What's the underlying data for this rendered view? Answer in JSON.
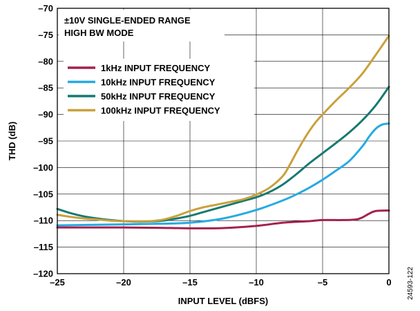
{
  "chart_data": {
    "type": "line",
    "title": "",
    "xlabel": "INPUT LEVEL (dBFS)",
    "ylabel": "THD (dB)",
    "xlim": [
      -25,
      0
    ],
    "ylim": [
      -120,
      -70
    ],
    "xticks": [
      -25,
      -20,
      -15,
      -10,
      -5,
      0
    ],
    "xtick_labels": [
      "–25",
      "–20",
      "–15",
      "–10",
      "–5",
      "0"
    ],
    "yticks": [
      -120,
      -115,
      -110,
      -105,
      -100,
      -95,
      -90,
      -85,
      -80,
      -75,
      -70
    ],
    "ytick_labels": [
      "–120",
      "–115",
      "–110",
      "–105",
      "–100",
      "–95",
      "–90",
      "–85",
      "–80",
      "–75",
      "–70"
    ],
    "grid": true,
    "legend_position": "upper-left",
    "annotation_lines": [
      "±10V SINGLE-ENDED RANGE",
      "HIGH BW MODE"
    ],
    "figure_id": "24593-122",
    "series": [
      {
        "name": "1kHz INPUT FREQUENCY",
        "color": "#a3214f",
        "points": [
          [
            -25,
            -111.3
          ],
          [
            -22.5,
            -111.3
          ],
          [
            -20,
            -111.3
          ],
          [
            -17.5,
            -111.35
          ],
          [
            -15,
            -111.45
          ],
          [
            -12.5,
            -111.4
          ],
          [
            -10,
            -111.0
          ],
          [
            -8,
            -110.4
          ],
          [
            -6,
            -110.1
          ],
          [
            -5,
            -109.9
          ],
          [
            -3.5,
            -109.9
          ],
          [
            -2.5,
            -109.8
          ],
          [
            -2,
            -109.4
          ],
          [
            -1.5,
            -108.7
          ],
          [
            -1,
            -108.2
          ],
          [
            0,
            -108.1
          ]
        ]
      },
      {
        "name": "10kHz INPUT FREQUENCY",
        "color": "#27aae1",
        "points": [
          [
            -25,
            -110.9
          ],
          [
            -22.5,
            -110.8
          ],
          [
            -20,
            -110.7
          ],
          [
            -17.5,
            -110.6
          ],
          [
            -15,
            -110.4
          ],
          [
            -12.5,
            -109.6
          ],
          [
            -10,
            -108.0
          ],
          [
            -8,
            -106.2
          ],
          [
            -7,
            -105.1
          ],
          [
            -6,
            -103.8
          ],
          [
            -5,
            -102.3
          ],
          [
            -4,
            -100.6
          ],
          [
            -3,
            -98.8
          ],
          [
            -2,
            -96.0
          ],
          [
            -1.5,
            -94.2
          ],
          [
            -1,
            -92.7
          ],
          [
            -0.5,
            -91.9
          ],
          [
            0,
            -91.7
          ]
        ]
      },
      {
        "name": "50kHz INPUT FREQUENCY",
        "color": "#177a70",
        "points": [
          [
            -25,
            -107.8
          ],
          [
            -24,
            -108.6
          ],
          [
            -23,
            -109.2
          ],
          [
            -22,
            -109.6
          ],
          [
            -21,
            -109.9
          ],
          [
            -20,
            -110.1
          ],
          [
            -19,
            -110.2
          ],
          [
            -18,
            -110.15
          ],
          [
            -17,
            -110.0
          ],
          [
            -16,
            -109.6
          ],
          [
            -15,
            -109.1
          ],
          [
            -14,
            -108.4
          ],
          [
            -13,
            -107.7
          ],
          [
            -12,
            -107.0
          ],
          [
            -11,
            -106.3
          ],
          [
            -10,
            -105.6
          ],
          [
            -9,
            -104.6
          ],
          [
            -8,
            -103.2
          ],
          [
            -7,
            -101.3
          ],
          [
            -6,
            -99.2
          ],
          [
            -5,
            -97.3
          ],
          [
            -4,
            -95.4
          ],
          [
            -3,
            -93.4
          ],
          [
            -2,
            -91.1
          ],
          [
            -1,
            -88.3
          ],
          [
            0,
            -84.8
          ]
        ]
      },
      {
        "name": "100kHz INPUT FREQUENCY",
        "color": "#c9a13c",
        "points": [
          [
            -25,
            -108.9
          ],
          [
            -24,
            -109.3
          ],
          [
            -23,
            -109.6
          ],
          [
            -22,
            -109.8
          ],
          [
            -21,
            -110.0
          ],
          [
            -20,
            -110.1
          ],
          [
            -19,
            -110.15
          ],
          [
            -18,
            -110.1
          ],
          [
            -17,
            -109.8
          ],
          [
            -16,
            -109.1
          ],
          [
            -15,
            -108.2
          ],
          [
            -14,
            -107.5
          ],
          [
            -13,
            -107.0
          ],
          [
            -12,
            -106.5
          ],
          [
            -11,
            -106.0
          ],
          [
            -10,
            -105.1
          ],
          [
            -9,
            -103.8
          ],
          [
            -8,
            -101.6
          ],
          [
            -7.5,
            -99.6
          ],
          [
            -7,
            -97.3
          ],
          [
            -6.5,
            -95.1
          ],
          [
            -6,
            -93.1
          ],
          [
            -5.5,
            -91.4
          ],
          [
            -5,
            -90.0
          ],
          [
            -4,
            -87.4
          ],
          [
            -3,
            -85.0
          ],
          [
            -2,
            -82.3
          ],
          [
            -1,
            -78.8
          ],
          [
            -0.5,
            -77.0
          ],
          [
            0,
            -75.2
          ]
        ]
      }
    ]
  }
}
